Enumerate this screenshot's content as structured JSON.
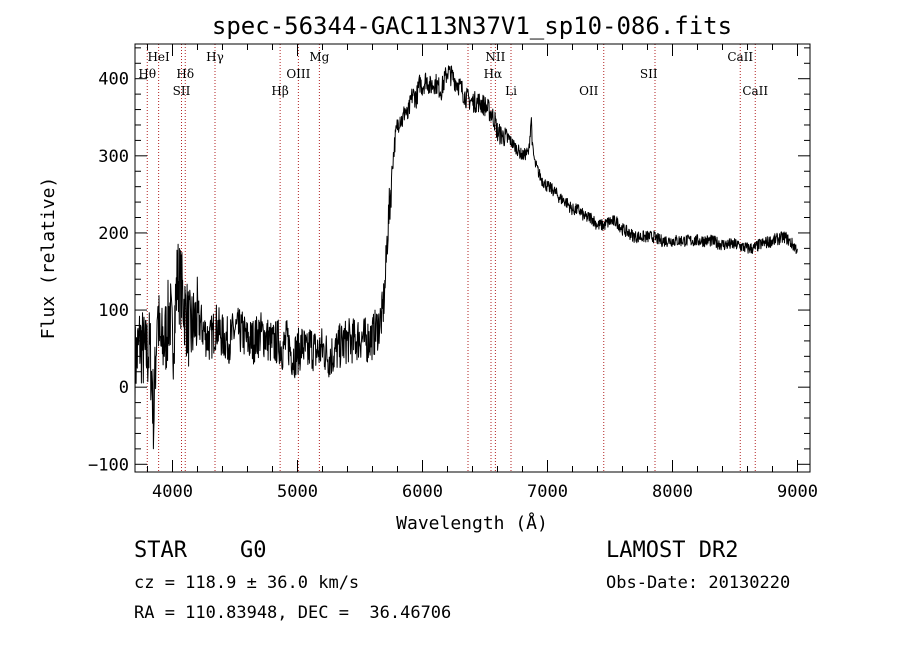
{
  "chart_data": {
    "type": "line",
    "title": "spec-56344-GAC113N37V1_sp10-086.fits",
    "xlabel": "Wavelength (Å)",
    "ylabel": "Flux (relative)",
    "xlim": [
      3700,
      9100
    ],
    "ylim": [
      -110,
      445
    ],
    "xticks": [
      4000,
      5000,
      6000,
      7000,
      8000,
      9000
    ],
    "yticks": [
      -100,
      0,
      100,
      200,
      300,
      400
    ],
    "grid": false,
    "series": [
      {
        "color": "#000000",
        "x": [
          3700,
          3740,
          3780,
          3820,
          3850,
          3880,
          3900,
          3940,
          3980,
          4000,
          4040,
          4080,
          4100,
          4140,
          4200,
          4260,
          4300,
          4350,
          4400,
          4460,
          4500,
          4560,
          4600,
          4650,
          4700,
          4750,
          4800,
          4850,
          4880,
          4920,
          4960,
          5000,
          5040,
          5080,
          5100,
          5150,
          5200,
          5250,
          5300,
          5350,
          5400,
          5450,
          5500,
          5550,
          5600,
          5650,
          5680,
          5700,
          5720,
          5740,
          5760,
          5780,
          5800,
          5820,
          5840,
          5860,
          5880,
          5900,
          5920,
          5950,
          5980,
          6000,
          6030,
          6060,
          6100,
          6150,
          6200,
          6250,
          6300,
          6350,
          6400,
          6450,
          6500,
          6550,
          6580,
          6600,
          6650,
          6700,
          6750,
          6800,
          6850,
          6870,
          6880,
          6900,
          6950,
          7000,
          7050,
          7100,
          7150,
          7200,
          7250,
          7300,
          7350,
          7400,
          7450,
          7500,
          7550,
          7600,
          7650,
          7700,
          7750,
          7800,
          7850,
          7900,
          7950,
          8000,
          8100,
          8200,
          8300,
          8400,
          8500,
          8600,
          8650,
          8700,
          8800,
          8900,
          8960,
          8990,
          9000
        ],
        "y": [
          30,
          60,
          40,
          50,
          -40,
          110,
          50,
          60,
          100,
          50,
          145,
          120,
          100,
          70,
          90,
          70,
          60,
          80,
          65,
          60,
          75,
          70,
          60,
          60,
          70,
          65,
          55,
          60,
          50,
          60,
          40,
          45,
          55,
          40,
          55,
          45,
          50,
          40,
          45,
          55,
          60,
          60,
          65,
          60,
          65,
          80,
          95,
          130,
          200,
          240,
          290,
          320,
          340,
          350,
          345,
          360,
          350,
          365,
          380,
          375,
          395,
          390,
          400,
          390,
          395,
          385,
          410,
          400,
          390,
          375,
          370,
          370,
          365,
          355,
          345,
          330,
          325,
          320,
          310,
          300,
          305,
          350,
          310,
          290,
          270,
          260,
          255,
          245,
          240,
          230,
          230,
          220,
          220,
          210,
          210,
          215,
          215,
          205,
          200,
          195,
          195,
          195,
          195,
          190,
          190,
          190,
          190,
          190,
          190,
          185,
          185,
          180,
          180,
          185,
          190,
          195,
          185,
          180,
          180
        ]
      }
    ],
    "annotations": [
      {
        "label": "HeI",
        "wavelength": 3889,
        "row": "top"
      },
      {
        "label": "Hθ",
        "wavelength": 3798,
        "row": "mid"
      },
      {
        "label": "Hδ",
        "wavelength": 4102,
        "row": "mid"
      },
      {
        "label": "SII",
        "wavelength": 4072,
        "row": "low"
      },
      {
        "label": "Hγ",
        "wavelength": 4340,
        "row": "top"
      },
      {
        "label": "Hβ",
        "wavelength": 4861,
        "row": "low"
      },
      {
        "label": "OIII",
        "wavelength": 5007,
        "row": "mid"
      },
      {
        "label": "Mg",
        "wavelength": 5175,
        "row": "top"
      },
      {
        "label": "NII",
        "wavelength": 6583,
        "row": "top"
      },
      {
        "label": "Hα",
        "wavelength": 6563,
        "row": "mid"
      },
      {
        "label": "Li",
        "wavelength": 6708,
        "row": "low"
      },
      {
        "label": "OII",
        "wavelength": 7330,
        "row": "low"
      },
      {
        "label": "SII",
        "wavelength": 7810,
        "row": "mid"
      },
      {
        "label": "CaII",
        "wavelength": 8542,
        "row": "top"
      },
      {
        "label": "CaII",
        "wavelength": 8662,
        "row": "low"
      }
    ],
    "line_marker_wavelengths": [
      3798,
      3889,
      4072,
      4102,
      4340,
      4861,
      5007,
      5175,
      6364,
      6548,
      6583,
      6708,
      7450,
      7860,
      8542,
      8662
    ]
  },
  "info": {
    "object_class": "STAR",
    "subclass": "G0",
    "survey": "LAMOST DR2",
    "redshift": "cz = 118.9 ± 36.0 km/s",
    "obs_date": "Obs-Date: 20130220",
    "coords": "RA = 110.83948, DEC =  36.46706"
  }
}
